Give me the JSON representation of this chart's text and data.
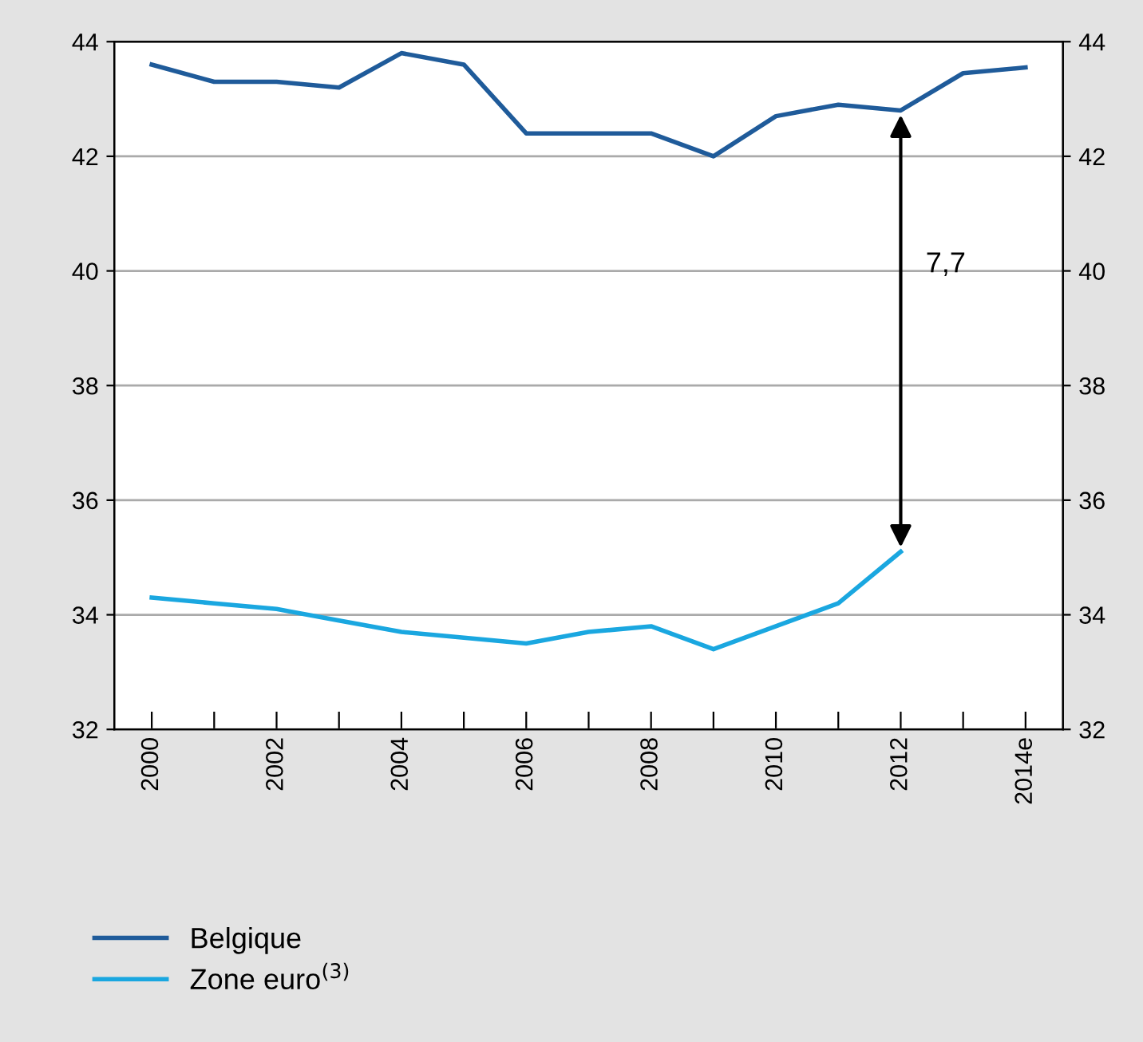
{
  "chart_data": {
    "type": "line",
    "categories": [
      "2000",
      null,
      "2002",
      null,
      "2004",
      null,
      "2006",
      null,
      "2008",
      null,
      "2010",
      null,
      "2012",
      null,
      "2014e"
    ],
    "series": [
      {
        "name": "Belgique",
        "color": "#1f5b9a",
        "values": [
          43.6,
          43.3,
          43.3,
          43.2,
          43.8,
          43.6,
          42.4,
          42.4,
          42.4,
          42.0,
          42.7,
          42.9,
          42.8,
          43.45,
          43.55
        ]
      },
      {
        "name": "Zone euro$^{(3)}$",
        "color": "#1aa7e0",
        "values": [
          34.3,
          34.2,
          34.1,
          33.9,
          33.7,
          33.6,
          33.5,
          33.7,
          33.8,
          33.4,
          33.8,
          34.2,
          35.1,
          null,
          null
        ]
      }
    ],
    "ylim": [
      32,
      44
    ],
    "yticks": [
      32,
      34,
      36,
      38,
      40,
      42,
      44
    ],
    "y2lim": [
      32,
      44
    ],
    "y2ticks": [
      32,
      34,
      36,
      38,
      40,
      42,
      44
    ],
    "grid": "y",
    "legend": "bottom",
    "annotations": [
      "7,7"
    ]
  }
}
